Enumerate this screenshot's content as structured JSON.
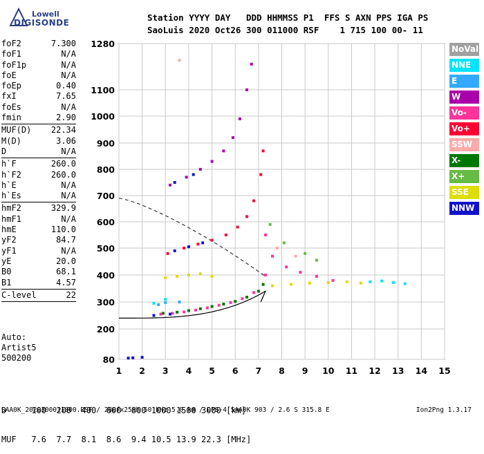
{
  "logo": {
    "brand": "Lowell",
    "name": "DIGISONDE"
  },
  "header": {
    "line1": "Station YYYY DAY   DDD HHMMSS P1  FFS S AXN PPS IGA PS",
    "line2": "SaoLuis 2020 Oct26 300 011000 RSF    1 715 100 00- 11"
  },
  "params_groups": [
    [
      {
        "name": "foF2",
        "value": "7.300"
      },
      {
        "name": "foF1",
        "value": "N/A"
      },
      {
        "name": "foF1p",
        "value": "N/A"
      },
      {
        "name": "foE",
        "value": "N/A"
      },
      {
        "name": "foEp",
        "value": "0.40"
      },
      {
        "name": "fxI",
        "value": "7.65"
      },
      {
        "name": "foEs",
        "value": "N/A"
      },
      {
        "name": "fmin",
        "value": "2.90"
      }
    ],
    [
      {
        "name": "MUF(D)",
        "value": "22.34"
      },
      {
        "name": "M(D)",
        "value": "3.06"
      },
      {
        "name": "D",
        "value": "N/A"
      }
    ],
    [
      {
        "name": "h`F",
        "value": "260.0"
      },
      {
        "name": "h`F2",
        "value": "260.0"
      },
      {
        "name": "h`E",
        "value": "N/A"
      },
      {
        "name": "h`Es",
        "value": "N/A"
      }
    ],
    [
      {
        "name": "hmF2",
        "value": "329.9"
      },
      {
        "name": "hmF1",
        "value": "N/A"
      },
      {
        "name": "hmE",
        "value": "110.0"
      },
      {
        "name": "yF2",
        "value": "84.7"
      },
      {
        "name": "yF1",
        "value": "N/A"
      },
      {
        "name": "yE",
        "value": "20.0"
      },
      {
        "name": "B0",
        "value": "68.1"
      },
      {
        "name": "B1",
        "value": "4.57"
      }
    ],
    [
      {
        "name": "C-level",
        "value": "22"
      }
    ]
  ],
  "auto": {
    "line1": "Auto:",
    "line2": "Artist5",
    "line3": "500200"
  },
  "distance_table": {
    "d_row": "D     100  200  400  600  800 1000 1500 3000 [km]",
    "muf_row": "MUF   7.6  7.7  8.1  8.6  9.4 10.5 13.9 22.3 [MHz]"
  },
  "footer": {
    "left": "SAA0K_2020300011000.RSF / 280fx256h 50 kHz 5.0 km / DPS-4 SAA0K 903 / 2.6 S 315.8 E",
    "right": "Ion2Png 1.3.17"
  },
  "legend": [
    {
      "label": "NoVal",
      "color": "#a0a0a0"
    },
    {
      "label": "NNE",
      "color": "#00e5ff"
    },
    {
      "label": "E",
      "color": "#33aaff"
    },
    {
      "label": "W",
      "color": "#aa00aa"
    },
    {
      "label": "Vo-",
      "color": "#ff3399"
    },
    {
      "label": "Vo+",
      "color": "#ff0033"
    },
    {
      "label": "SSW",
      "color": "#ffaaaa"
    },
    {
      "label": "X-",
      "color": "#007700"
    },
    {
      "label": "X+",
      "color": "#66bb44"
    },
    {
      "label": "SSE",
      "color": "#dddd00"
    },
    {
      "label": "NNW",
      "color": "#1111cc"
    }
  ],
  "chart_data": {
    "type": "scatter",
    "title": "",
    "xlabel": "",
    "ylabel": "",
    "xlim": [
      1,
      15
    ],
    "ylim": [
      80,
      1280
    ],
    "x_ticks": [
      "1",
      "2",
      "3",
      "4",
      "5",
      "6",
      "7",
      "8",
      "9",
      "10",
      "11",
      "12",
      "13",
      "14",
      "15"
    ],
    "y_ticks": [
      "80",
      "200",
      "300",
      "400",
      "500",
      "600",
      "700",
      "800",
      "900",
      "1000",
      "1100",
      "1280"
    ],
    "grid": true,
    "series": [
      {
        "name": "X-",
        "color": "#007700",
        "points": [
          [
            2.9,
            258
          ],
          [
            3.5,
            262
          ],
          [
            4.0,
            268
          ],
          [
            4.5,
            275
          ],
          [
            5.0,
            283
          ],
          [
            5.5,
            292
          ],
          [
            6.0,
            302
          ],
          [
            6.5,
            318
          ],
          [
            7.0,
            340
          ],
          [
            7.2,
            365
          ]
        ]
      },
      {
        "name": "Vo-",
        "color": "#ff3399",
        "points": [
          [
            2.8,
            255
          ],
          [
            3.3,
            258
          ],
          [
            3.8,
            263
          ],
          [
            4.3,
            270
          ],
          [
            4.8,
            278
          ],
          [
            5.3,
            288
          ],
          [
            5.8,
            298
          ],
          [
            6.3,
            312
          ],
          [
            6.8,
            335
          ],
          [
            7.3,
            400
          ],
          [
            7.3,
            550
          ],
          [
            7.6,
            470
          ],
          [
            8.2,
            430
          ],
          [
            8.8,
            410
          ],
          [
            9.5,
            395
          ],
          [
            10.2,
            380
          ]
        ]
      },
      {
        "name": "Vo+",
        "color": "#ff0033",
        "points": [
          [
            3.1,
            480
          ],
          [
            3.8,
            500
          ],
          [
            4.4,
            515
          ],
          [
            5.0,
            530
          ],
          [
            5.6,
            550
          ],
          [
            6.1,
            580
          ],
          [
            6.5,
            620
          ],
          [
            6.8,
            680
          ],
          [
            7.1,
            780
          ],
          [
            7.2,
            870
          ]
        ]
      },
      {
        "name": "W",
        "color": "#aa00aa",
        "points": [
          [
            3.2,
            740
          ],
          [
            3.9,
            770
          ],
          [
            4.5,
            800
          ],
          [
            5.0,
            830
          ],
          [
            5.5,
            870
          ],
          [
            5.9,
            920
          ],
          [
            6.2,
            990
          ],
          [
            6.5,
            1100
          ],
          [
            6.7,
            1200
          ]
        ]
      },
      {
        "name": "NNW",
        "color": "#1111cc",
        "points": [
          [
            2.5,
            250
          ],
          [
            3.2,
            255
          ],
          [
            3.4,
            490
          ],
          [
            4.0,
            505
          ],
          [
            4.6,
            520
          ],
          [
            3.4,
            750
          ],
          [
            4.2,
            780
          ],
          [
            1.4,
            85
          ],
          [
            1.6,
            86
          ],
          [
            2.0,
            88
          ]
        ]
      },
      {
        "name": "SSE",
        "color": "#dddd00",
        "points": [
          [
            3.0,
            390
          ],
          [
            3.5,
            395
          ],
          [
            4.0,
            400
          ],
          [
            4.5,
            405
          ],
          [
            5.0,
            395
          ],
          [
            7.6,
            360
          ],
          [
            8.4,
            365
          ],
          [
            9.2,
            370
          ],
          [
            10.0,
            372
          ],
          [
            10.8,
            375
          ],
          [
            11.4,
            370
          ]
        ]
      },
      {
        "name": "NNE",
        "color": "#00e5ff",
        "points": [
          [
            2.5,
            295
          ],
          [
            3.0,
            310
          ],
          [
            11.8,
            375
          ],
          [
            12.3,
            378
          ],
          [
            12.8,
            372
          ],
          [
            13.3,
            368
          ]
        ]
      },
      {
        "name": "X+",
        "color": "#66bb44",
        "points": [
          [
            7.5,
            590
          ],
          [
            8.1,
            520
          ],
          [
            9.0,
            480
          ],
          [
            9.5,
            455
          ]
        ]
      },
      {
        "name": "E",
        "color": "#33aaff",
        "points": [
          [
            3.0,
            298
          ],
          [
            3.6,
            300
          ],
          [
            2.7,
            290
          ]
        ]
      },
      {
        "name": "SSW",
        "color": "#ffaaaa",
        "points": [
          [
            3.6,
            1215
          ],
          [
            7.8,
            500
          ],
          [
            8.6,
            470
          ]
        ]
      }
    ]
  }
}
